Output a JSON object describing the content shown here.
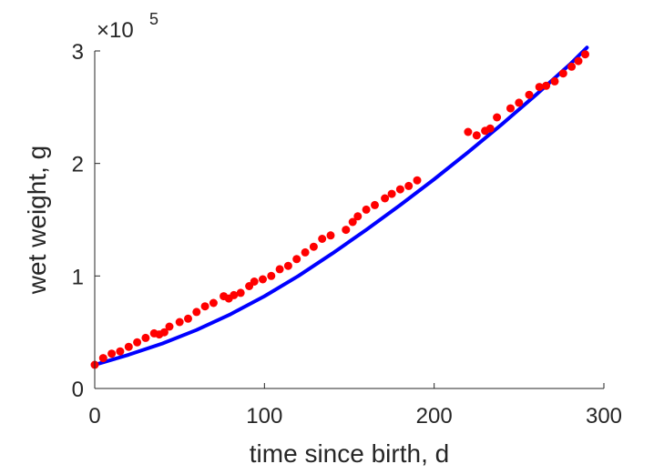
{
  "chart_data": {
    "type": "scatter",
    "title": "",
    "xlabel": "time since birth, d",
    "ylabel": "wet weight, g",
    "xlim": [
      0,
      300
    ],
    "ylim": [
      0,
      300000
    ],
    "x_ticks": [
      0,
      100,
      200,
      300
    ],
    "x_tick_labels": [
      "0",
      "100",
      "200",
      "300"
    ],
    "y_ticks": [
      0,
      100000,
      200000,
      300000
    ],
    "y_tick_labels": [
      "0",
      "1",
      "2",
      "3"
    ],
    "y_exponent_prefix": "×10",
    "y_exponent_power": "5",
    "grid": false,
    "series": [
      {
        "kind": "scatter",
        "color": "#ff0000",
        "x": [
          0,
          5,
          10,
          15,
          20,
          25,
          30,
          35,
          38,
          41,
          44,
          50,
          55,
          60,
          65,
          70,
          76,
          79,
          82,
          86,
          91,
          94,
          99,
          104,
          109,
          114,
          119,
          124,
          129,
          134,
          139,
          148,
          152,
          155,
          160,
          165,
          171,
          175,
          180,
          185,
          190,
          220,
          225,
          230,
          233,
          237,
          245,
          250,
          256,
          262,
          266,
          271,
          276,
          281,
          285,
          289
        ],
        "y": [
          21000,
          27000,
          31000,
          33000,
          37000,
          41000,
          45000,
          49000,
          48000,
          50000,
          55000,
          59000,
          62000,
          68000,
          73000,
          76000,
          82000,
          80000,
          83000,
          85000,
          91000,
          95000,
          97000,
          100000,
          106000,
          109000,
          115000,
          121000,
          126000,
          133000,
          136000,
          141000,
          148000,
          153000,
          159000,
          163000,
          169000,
          173000,
          177000,
          180000,
          185000,
          228000,
          225000,
          229000,
          231000,
          241000,
          249000,
          254000,
          261000,
          268000,
          269000,
          273000,
          280000,
          286000,
          291000,
          297000
        ]
      },
      {
        "kind": "line",
        "color": "#0000ff",
        "x": [
          0,
          20,
          40,
          60,
          80,
          100,
          120,
          140,
          160,
          180,
          200,
          220,
          240,
          260,
          280,
          290
        ],
        "y": [
          21000,
          30000,
          40000,
          52000,
          66000,
          82000,
          100000,
          120000,
          141000,
          163000,
          186000,
          210000,
          235000,
          261000,
          288000,
          303000
        ]
      }
    ]
  }
}
